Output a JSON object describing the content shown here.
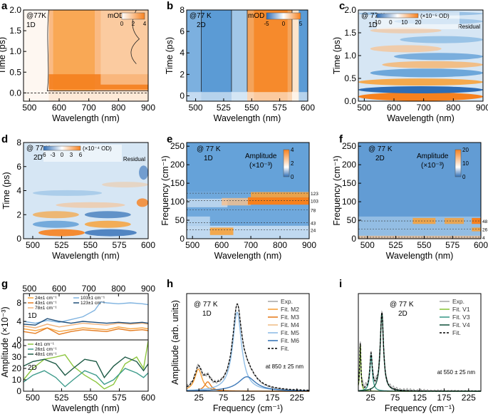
{
  "chart_data": [
    {
      "panel": "a",
      "type": "heatmap",
      "note": "@77K",
      "sample": "1D",
      "xlabel": "Wavelength (nm)",
      "ylabel": "Time (ps)",
      "xlim": [
        480,
        900
      ],
      "ylim": [
        -0.2,
        2.0
      ],
      "xticks": [
        500,
        600,
        700,
        800,
        900
      ],
      "yticks": [
        0.0,
        0.5,
        1.0,
        1.5,
        2.0
      ],
      "colorbar": {
        "title": "mOD",
        "ticks": [
          0,
          2,
          4
        ],
        "colors": [
          "#ffffff",
          "#f7811e"
        ]
      }
    },
    {
      "panel": "b",
      "type": "heatmap",
      "note": "@77 K",
      "sample": "2D",
      "xlabel": "Wavelength (nm)",
      "ylabel": "Time (ps)",
      "xlim": [
        492,
        600
      ],
      "ylim": [
        -0.5,
        8
      ],
      "xticks": [
        500,
        525,
        550,
        575,
        600
      ],
      "yticks": [
        0,
        2,
        4,
        6,
        8
      ],
      "colorbar": {
        "title": "mOD",
        "ticks": [
          -5,
          0,
          5
        ],
        "colors": [
          "#3a7fc4",
          "#ffffff",
          "#f7811e"
        ]
      }
    },
    {
      "panel": "c",
      "type": "heatmap",
      "note": "@ 77 K",
      "sample": "1D",
      "label": "Residual",
      "xlabel": "Wavelength (nm)",
      "ylabel": "Time (ps)",
      "xlim": [
        480,
        900
      ],
      "ylim": [
        0,
        2.0
      ],
      "xticks": [
        500,
        600,
        700,
        800,
        900
      ],
      "yticks": [
        0.0,
        0.5,
        1.0,
        1.5,
        2.0
      ],
      "colorbar": {
        "title": "(×10⁻⁵ OD)",
        "ticks": [
          -10,
          0,
          10,
          20
        ],
        "colors": [
          "#2f6db5",
          "#ffffff",
          "#f7811e"
        ]
      }
    },
    {
      "panel": "d",
      "type": "heatmap",
      "note": "@ 77 K",
      "sample": "2D",
      "label": "Residual",
      "xlabel": "Wavelength (nm)",
      "ylabel": "Time (ps)",
      "xlim": [
        492,
        600
      ],
      "ylim": [
        0,
        8
      ],
      "xticks": [
        500,
        525,
        550,
        575,
        600
      ],
      "yticks": [
        0,
        2,
        4,
        6,
        8
      ],
      "colorbar": {
        "title": "(×10⁻⁴ OD)",
        "ticks": [
          -6,
          -3,
          0,
          3,
          6
        ],
        "colors": [
          "#2f6db5",
          "#ffffff",
          "#f7811e"
        ]
      }
    },
    {
      "panel": "e",
      "type": "heatmap",
      "note": "@ 77 K",
      "sample": "1D",
      "xlabel": "Wavelength (nm)",
      "ylabel": "Frequency (cm⁻¹)",
      "xlim": [
        480,
        900
      ],
      "ylim": [
        0,
        260
      ],
      "xticks": [
        500,
        600,
        700,
        800,
        900
      ],
      "yticks": [
        0,
        50,
        100,
        150,
        200,
        250
      ],
      "mode_lines": [
        123,
        103,
        78,
        43,
        24
      ],
      "colorbar": {
        "title": "Amplitude",
        "subtitle": "(×10⁻³)",
        "ticks": [
          0,
          2,
          4
        ],
        "colors": [
          "#2f6db5",
          "#ffffff",
          "#f7811e"
        ]
      }
    },
    {
      "panel": "f",
      "type": "heatmap",
      "note": "@ 77 K",
      "sample": "2D",
      "xlabel": "Wavelength (nm)",
      "ylabel": "Frequency (cm⁻¹)",
      "xlim": [
        492,
        600
      ],
      "ylim": [
        0,
        260
      ],
      "xticks": [
        500,
        525,
        550,
        575,
        600
      ],
      "yticks": [
        0,
        50,
        100,
        150,
        200,
        250
      ],
      "mode_lines": [
        48,
        26,
        4
      ],
      "colorbar": {
        "title": "Amplitude",
        "subtitle": "(×10⁻³)",
        "ticks": [
          0,
          10,
          20
        ],
        "colors": [
          "#2f6db5",
          "#ffffff",
          "#f7811e"
        ]
      }
    },
    {
      "panel": "g",
      "type": "line",
      "xlabel": "Wavelength (nm)",
      "ylabel": "Amplitude (×10⁻³)",
      "top_axis": {
        "xlim": [
          480,
          900
        ],
        "ticks": [
          500,
          600,
          700,
          800,
          900
        ],
        "sample": "1D",
        "ylim": [
          0,
          10
        ],
        "yticks": [
          0,
          4,
          8
        ]
      },
      "bottom_axis": {
        "xlim": [
          492,
          600
        ],
        "ticks": [
          500,
          525,
          550,
          575,
          600
        ],
        "sample": "2D",
        "ylim": [
          0,
          45
        ],
        "yticks": [
          0,
          10,
          20,
          30,
          40
        ]
      },
      "series_top": [
        {
          "name": "24±1 cm⁻¹",
          "color": "#f7a23c",
          "x": [
            480,
            520,
            560,
            600,
            640,
            680,
            720,
            760,
            800,
            840,
            880,
            900
          ],
          "y": [
            2.4,
            2.0,
            2.6,
            1.8,
            2.2,
            2.6,
            2.4,
            2.2,
            2.8,
            2.4,
            2.6,
            2.4
          ]
        },
        {
          "name": "43±1 cm⁻¹",
          "color": "#e67e22",
          "x": [
            480,
            520,
            560,
            600,
            640,
            680,
            720,
            760,
            800,
            840,
            880,
            900
          ],
          "y": [
            1.8,
            1.4,
            2.6,
            1.2,
            1.8,
            2.2,
            2.0,
            1.8,
            2.4,
            2.0,
            2.2,
            2.0
          ]
        },
        {
          "name": "78±1 cm⁻¹",
          "color": "#f0b27a",
          "x": [
            480,
            520,
            560,
            600,
            640,
            680,
            720,
            760,
            800,
            840,
            880,
            900
          ],
          "y": [
            3.0,
            2.6,
            3.4,
            2.8,
            3.2,
            3.6,
            3.4,
            3.2,
            3.6,
            3.4,
            3.6,
            3.4
          ]
        },
        {
          "name": "103±1 cm⁻¹",
          "color": "#7fb3e0",
          "x": [
            480,
            520,
            560,
            600,
            640,
            680,
            720,
            740,
            760,
            800,
            840,
            880,
            900
          ],
          "y": [
            4.0,
            3.6,
            4.2,
            3.8,
            4.4,
            5.0,
            6.4,
            8.2,
            8.0,
            7.8,
            8.0,
            7.8,
            7.6
          ]
        },
        {
          "name": "123±1 cm⁻¹",
          "color": "#1f4e79",
          "x": [
            480,
            520,
            560,
            600,
            640,
            680,
            720,
            760,
            800,
            840,
            880,
            900
          ],
          "y": [
            3.4,
            3.2,
            4.6,
            4.0,
            3.6,
            4.0,
            3.8,
            3.6,
            3.8,
            3.6,
            3.8,
            3.6
          ]
        }
      ],
      "series_bottom": [
        {
          "name": "4±1 cm⁻¹",
          "color": "#8dc63f",
          "x": [
            492,
            500,
            510,
            520,
            528,
            535,
            545,
            555,
            562,
            570,
            580,
            590,
            596,
            600
          ],
          "y": [
            10,
            20,
            28,
            30,
            32,
            22,
            14,
            8,
            2,
            6,
            24,
            30,
            20,
            44
          ]
        },
        {
          "name": "26±1 cm⁻¹",
          "color": "#3f9c8c",
          "x": [
            492,
            500,
            510,
            520,
            528,
            535,
            545,
            555,
            562,
            570,
            580,
            590,
            596,
            600
          ],
          "y": [
            8,
            14,
            18,
            12,
            4,
            10,
            18,
            14,
            6,
            10,
            20,
            16,
            12,
            16
          ]
        },
        {
          "name": "48±1 cm⁻¹",
          "color": "#1d5a45",
          "x": [
            492,
            500,
            510,
            520,
            528,
            535,
            545,
            555,
            562,
            570,
            580,
            590,
            596,
            600
          ],
          "y": [
            22,
            26,
            28,
            24,
            14,
            20,
            28,
            26,
            12,
            22,
            30,
            26,
            18,
            24
          ]
        }
      ]
    },
    {
      "panel": "h",
      "type": "line",
      "note": "@ 77 K",
      "sample": "1D",
      "xlabel": "Frequency (cm⁻¹)",
      "ylabel": "Amplitude (arb. units)",
      "xlim": [
        0,
        250
      ],
      "ylim": [
        0,
        1.15
      ],
      "xticks": [
        25,
        75,
        125,
        175,
        225
      ],
      "annotation": "at 850 ± 25 nm",
      "series": [
        {
          "name": "Exp.",
          "color": "#aaaaaa",
          "style": "solid"
        },
        {
          "name": "Fit. M2",
          "color": "#f7a23c",
          "center": 24,
          "height": 0.26,
          "width": 9
        },
        {
          "name": "Fit. M3",
          "color": "#e67e22",
          "center": 43,
          "height": 0.11,
          "width": 8
        },
        {
          "name": "Fit. M4",
          "color": "#f0c08a",
          "center": 78,
          "height": 0.0,
          "width": 10
        },
        {
          "name": "Fit. M5",
          "color": "#8fbde6",
          "center": 103,
          "height": 0.93,
          "width": 11
        },
        {
          "name": "Fit. M6",
          "color": "#3c78b8",
          "center": 123,
          "height": 0.17,
          "width": 22
        },
        {
          "name": "Fit.",
          "color": "#000000",
          "style": "dashed"
        }
      ]
    },
    {
      "panel": "i",
      "type": "line",
      "note": "@ 77 K",
      "sample": "2D",
      "xlabel": "Frequency (cm⁻¹)",
      "ylabel": "",
      "xlim": [
        0,
        250
      ],
      "ylim": [
        0,
        1.15
      ],
      "xticks": [
        25,
        75,
        125,
        175,
        225
      ],
      "annotation": "at 550 ± 25 nm",
      "series": [
        {
          "name": "Exp.",
          "color": "#aaaaaa",
          "style": "solid"
        },
        {
          "name": "Fit. V1",
          "color": "#8dc63f",
          "center": 4,
          "height": 0.55,
          "width": 1.5
        },
        {
          "name": "Fit. V3",
          "color": "#3f9c8c",
          "center": 26,
          "height": 0.42,
          "width": 3
        },
        {
          "name": "Fit. V4",
          "color": "#1d5a45",
          "center": 48,
          "height": 0.92,
          "width": 4
        },
        {
          "name": "Fit.",
          "color": "#000000",
          "style": "dashed"
        }
      ]
    }
  ]
}
